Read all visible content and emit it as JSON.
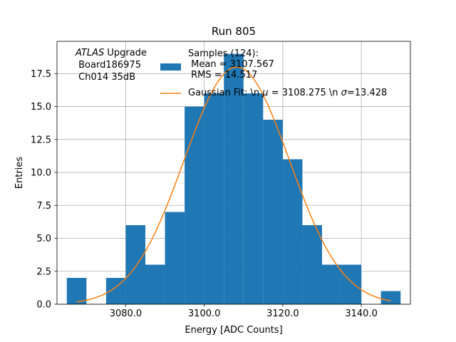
{
  "chart_data": {
    "type": "bar",
    "title": "Run 805",
    "xlabel": "Energy [ADC Counts]",
    "ylabel": "Entries",
    "xlim": [
      3062.5,
      3152.5
    ],
    "ylim": [
      0,
      19.95
    ],
    "grid": true,
    "legend_placement": "top-right",
    "x_ticks": [
      3080,
      3100,
      3120,
      3140
    ],
    "x_tick_labels": [
      "3080.0",
      "3100.0",
      "3120.0",
      "3140.0"
    ],
    "y_ticks": [
      0,
      2.5,
      5,
      7.5,
      10,
      12.5,
      15,
      17.5
    ],
    "y_tick_labels": [
      "0.0",
      "2.5",
      "5.0",
      "7.5",
      "10.0",
      "12.5",
      "15.0",
      "17.5"
    ],
    "histogram": {
      "name": "Samples (124):\n Mean = 3107.567\n RMS = 14.517",
      "color": "#1f77b4",
      "bins": [
        {
          "x0": 3065,
          "x1": 3070,
          "count": 2
        },
        {
          "x0": 3070,
          "x1": 3075,
          "count": 0
        },
        {
          "x0": 3075,
          "x1": 3080,
          "count": 2
        },
        {
          "x0": 3080,
          "x1": 3085,
          "count": 6
        },
        {
          "x0": 3085,
          "x1": 3090,
          "count": 3
        },
        {
          "x0": 3090,
          "x1": 3095,
          "count": 7
        },
        {
          "x0": 3095,
          "x1": 3100,
          "count": 15
        },
        {
          "x0": 3100,
          "x1": 3105,
          "count": 16
        },
        {
          "x0": 3105,
          "x1": 3110,
          "count": 19
        },
        {
          "x0": 3110,
          "x1": 3115,
          "count": 16
        },
        {
          "x0": 3115,
          "x1": 3120,
          "count": 14
        },
        {
          "x0": 3120,
          "x1": 3125,
          "count": 11
        },
        {
          "x0": 3125,
          "x1": 3130,
          "count": 6
        },
        {
          "x0": 3130,
          "x1": 3135,
          "count": 3
        },
        {
          "x0": 3135,
          "x1": 3140,
          "count": 3
        },
        {
          "x0": 3140,
          "x1": 3145,
          "count": 0
        },
        {
          "x0": 3145,
          "x1": 3150,
          "count": 1
        }
      ]
    },
    "fit": {
      "name_prefix": "Gaussian Fit: \\n ",
      "mu_symbol": "μ",
      "mu_text": " = 3108.275 \\n ",
      "sigma_symbol": "σ",
      "sigma_text": "=13.428",
      "color": "#ff7f0e",
      "mu": 3108.275,
      "sigma": 13.428,
      "amplitude": 18.0,
      "x_range": [
        3067.5,
        3147.5
      ]
    },
    "annotation": {
      "italic": "ATLAS",
      "rest": " Upgrade\n Board186975\n Ch014 35dB"
    }
  }
}
